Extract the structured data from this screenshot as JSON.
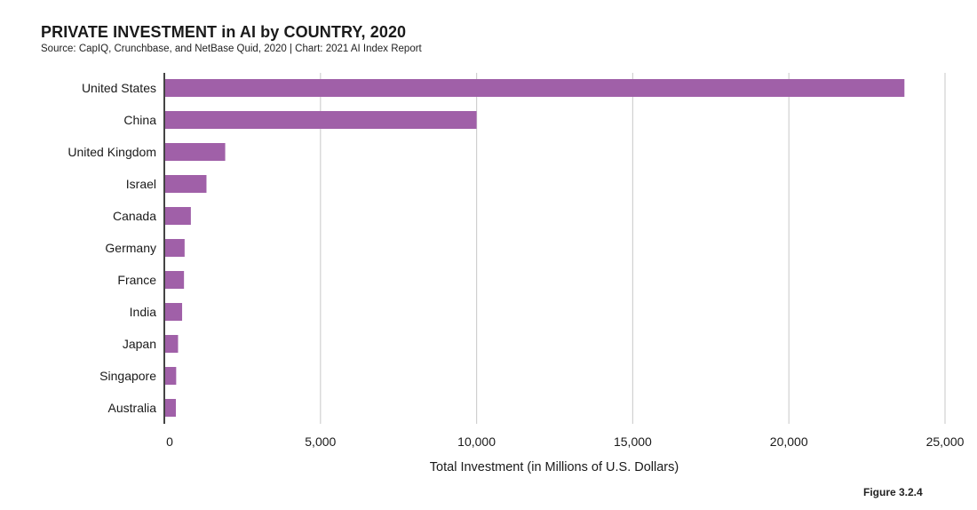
{
  "header": {
    "title": "PRIVATE INVESTMENT in AI by COUNTRY, 2020",
    "subtitle": "Source: CapIQ, Crunchbase, and NetBase Quid, 2020 | Chart: 2021 AI Index Report"
  },
  "figure_label": "Figure 3.2.4",
  "chart_data": {
    "type": "bar",
    "orientation": "horizontal",
    "categories": [
      "United States",
      "China",
      "United Kingdom",
      "Israel",
      "Canada",
      "Germany",
      "France",
      "India",
      "Japan",
      "Singapore",
      "Australia"
    ],
    "values": [
      23700,
      10000,
      1950,
      1350,
      850,
      650,
      630,
      570,
      440,
      380,
      370
    ],
    "xlabel": "Total Investment (in Millions of U.S. Dollars)",
    "ylabel": "",
    "xlim": [
      0,
      25000
    ],
    "xticks": [
      0,
      5000,
      10000,
      15000,
      20000,
      25000
    ],
    "xtick_labels": [
      "0",
      "5,000",
      "10,000",
      "15,000",
      "20,000",
      "25,000"
    ],
    "grid": "vertical",
    "bar_color": "#a060a8"
  }
}
